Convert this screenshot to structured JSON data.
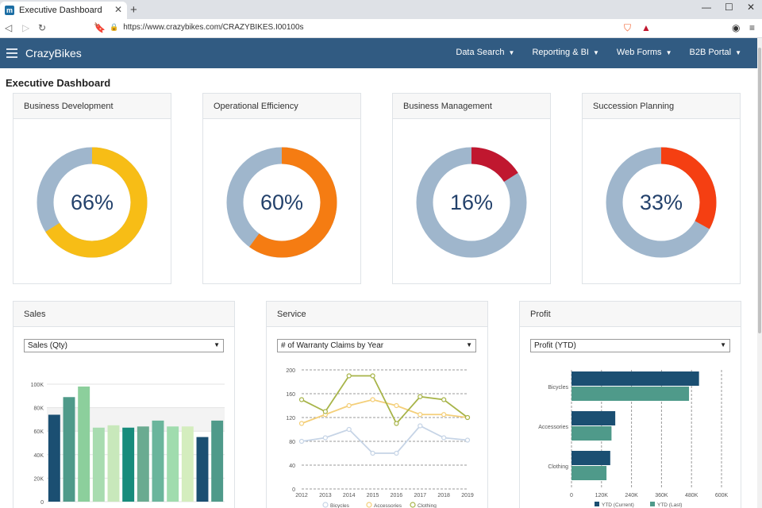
{
  "browser": {
    "tab_title": "Executive Dashboard",
    "url": "https://www.crazybikes.com/CRAZYBIKES.I00100s",
    "favicon_letter": "m"
  },
  "navbar": {
    "brand": "CrazyBikes",
    "menu": [
      {
        "label": "Data Search"
      },
      {
        "label": "Reporting & BI"
      },
      {
        "label": "Web Forms"
      },
      {
        "label": "B2B Portal"
      }
    ]
  },
  "page_title": "Executive Dashboard",
  "kpis": [
    {
      "title": "Business Development",
      "value_label": "66%",
      "value": 66,
      "color": "#f7bd16",
      "track": "#9fb6cc"
    },
    {
      "title": "Operational Efficiency",
      "value_label": "60%",
      "value": 60,
      "color": "#f57c12",
      "track": "#9fb6cc"
    },
    {
      "title": "Business Management",
      "value_label": "16%",
      "value": 16,
      "color": "#c0172f",
      "track": "#9fb6cc"
    },
    {
      "title": "Succession Planning",
      "value_label": "33%",
      "value": 33,
      "color": "#f53f12",
      "track": "#9fb6cc"
    }
  ],
  "panels": {
    "sales": {
      "title": "Sales",
      "select": "Sales (Qty)"
    },
    "service": {
      "title": "Service",
      "select": "# of Warranty Claims by Year"
    },
    "profit": {
      "title": "Profit",
      "select": "Profit (YTD)"
    }
  },
  "chart_data": [
    {
      "type": "bar",
      "ylim": [
        0,
        100000
      ],
      "yticks": [
        "0",
        "20K",
        "40K",
        "60K",
        "80K",
        "100K"
      ],
      "values": [
        74000,
        89000,
        98000,
        63000,
        65000,
        63000,
        64000,
        69000,
        64000,
        64000,
        55000,
        69000
      ],
      "colors": [
        "#1b4f72",
        "#4f9a8a",
        "#8ccf9c",
        "#a8dcb0",
        "#c8e8bb",
        "#178c7c",
        "#6aab91",
        "#6ab59c",
        "#a0dcae",
        "#d4edbe",
        "#1b4f72",
        "#4f9a8a"
      ]
    },
    {
      "type": "line",
      "x": [
        "2012",
        "2013",
        "2014",
        "2015",
        "2016",
        "2017",
        "2018",
        "2019"
      ],
      "ylim": [
        0,
        200
      ],
      "yticks": [
        "0",
        "40",
        "80",
        "120",
        "160",
        "200"
      ],
      "series": [
        {
          "name": "Bicycles",
          "color": "#c6d4e6",
          "values": [
            80,
            86,
            100,
            60,
            60,
            106,
            86,
            82
          ]
        },
        {
          "name": "Accessories",
          "color": "#f4cf79",
          "values": [
            110,
            125,
            140,
            150,
            140,
            125,
            125,
            120
          ]
        },
        {
          "name": "Clothing",
          "color": "#a7b449",
          "values": [
            150,
            130,
            190,
            190,
            110,
            155,
            150,
            120
          ]
        }
      ]
    },
    {
      "type": "bar",
      "orientation": "horizontal",
      "categories": [
        "Bicycles",
        "Accessories",
        "Clothing"
      ],
      "xticks": [
        "0",
        "120K",
        "240K",
        "360K",
        "480K",
        "600K"
      ],
      "xlim": [
        0,
        600000
      ],
      "series": [
        {
          "name": "YTD (Current)",
          "color": "#1b4f72",
          "values": [
            510000,
            175000,
            155000
          ]
        },
        {
          "name": "YTD (Last)",
          "color": "#4f9a8a",
          "values": [
            470000,
            160000,
            140000
          ]
        }
      ]
    }
  ]
}
